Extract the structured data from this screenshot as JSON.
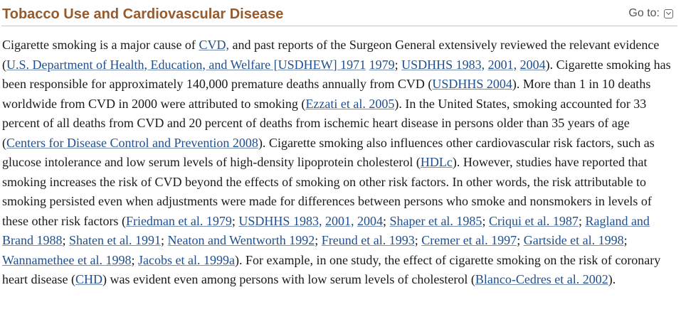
{
  "header": {
    "title": "Tobacco Use and Cardiovascular Disease",
    "goto_label": "Go to:",
    "goto_icon": "chevron-down-box-icon"
  },
  "paragraph": [
    {
      "t": "text",
      "v": "Cigarette smoking is a major cause of "
    },
    {
      "t": "link",
      "v": "CVD,"
    },
    {
      "t": "text",
      "v": " and past reports of the Surgeon General extensively reviewed the relevant evidence ("
    },
    {
      "t": "link",
      "v": "U.S. Department of Health, Education, and Welfare [USDHEW] 1971"
    },
    {
      "t": "text",
      "v": " "
    },
    {
      "t": "link",
      "v": "1979"
    },
    {
      "t": "text",
      "v": "; "
    },
    {
      "t": "link",
      "v": "USDHHS 1983,"
    },
    {
      "t": "text",
      "v": " "
    },
    {
      "t": "link",
      "v": "2001,"
    },
    {
      "t": "text",
      "v": " "
    },
    {
      "t": "link",
      "v": "2004"
    },
    {
      "t": "text",
      "v": "). Cigarette smoking has been responsible for approximately 140,000 premature deaths annually from CVD ("
    },
    {
      "t": "link",
      "v": "USDHHS 2004"
    },
    {
      "t": "text",
      "v": "). More than 1 in 10 deaths worldwide from CVD in 2000 were attributed to smoking ("
    },
    {
      "t": "link",
      "v": "Ezzati et al. 2005"
    },
    {
      "t": "text",
      "v": "). In the United States, smoking accounted for 33 percent of all deaths from CVD and 20 percent of deaths from ischemic heart disease in persons older than 35 years of age ("
    },
    {
      "t": "link",
      "v": "Centers for Disease Control and Prevention 2008"
    },
    {
      "t": "text",
      "v": "). Cigarette smoking also influences other cardiovascular risk factors, such as glucose intolerance and low serum levels of high-density lipoprotein cholesterol ("
    },
    {
      "t": "link",
      "v": "HDLc"
    },
    {
      "t": "text",
      "v": "). However, studies have reported that smoking increases the risk of CVD beyond the effects of smoking on other risk factors. In other words, the risk attributable to smoking persisted even when adjustments were made for differences between persons who smoke and nonsmokers in levels of these other risk factors ("
    },
    {
      "t": "link",
      "v": "Friedman et al. 1979"
    },
    {
      "t": "text",
      "v": "; "
    },
    {
      "t": "link",
      "v": "USDHHS 1983,"
    },
    {
      "t": "text",
      "v": " "
    },
    {
      "t": "link",
      "v": "2001,"
    },
    {
      "t": "text",
      "v": " "
    },
    {
      "t": "link",
      "v": "2004"
    },
    {
      "t": "text",
      "v": "; "
    },
    {
      "t": "link",
      "v": "Shaper et al. 1985"
    },
    {
      "t": "text",
      "v": "; "
    },
    {
      "t": "link",
      "v": "Criqui et al. 1987"
    },
    {
      "t": "text",
      "v": "; "
    },
    {
      "t": "link",
      "v": "Ragland and Brand 1988"
    },
    {
      "t": "text",
      "v": "; "
    },
    {
      "t": "link",
      "v": "Shaten et al. 1991"
    },
    {
      "t": "text",
      "v": "; "
    },
    {
      "t": "link",
      "v": "Neaton and Wentworth 1992"
    },
    {
      "t": "text",
      "v": "; "
    },
    {
      "t": "link",
      "v": "Freund et al. 1993"
    },
    {
      "t": "text",
      "v": "; "
    },
    {
      "t": "link",
      "v": "Cremer et al. 1997"
    },
    {
      "t": "text",
      "v": "; "
    },
    {
      "t": "link",
      "v": "Gartside et al. 1998"
    },
    {
      "t": "text",
      "v": "; "
    },
    {
      "t": "link",
      "v": "Wannamethee et al. 1998"
    },
    {
      "t": "text",
      "v": "; "
    },
    {
      "t": "link",
      "v": "Jacobs et al. 1999a"
    },
    {
      "t": "text",
      "v": "). For example, in one study, the effect of cigarette smoking on the risk of coronary heart disease ("
    },
    {
      "t": "link",
      "v": "CHD"
    },
    {
      "t": "text",
      "v": ") was evident even among persons with low serum levels of cholesterol ("
    },
    {
      "t": "link",
      "v": "Blanco-Cedres et al. 2002"
    },
    {
      "t": "text",
      "v": ")."
    }
  ],
  "colors": {
    "title": "#955a2d",
    "link": "#1f4f8f",
    "text": "#1a1a1a"
  }
}
